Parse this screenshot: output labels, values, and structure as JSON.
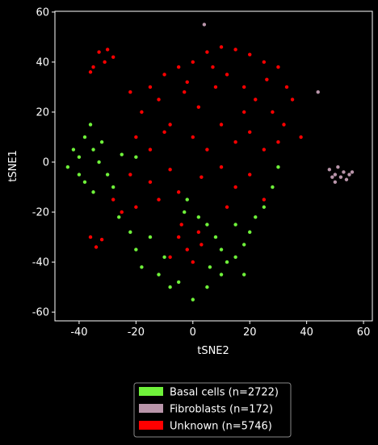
{
  "chart_data": {
    "type": "scatter",
    "x_label": "tSNE2",
    "y_label": "tSNE1",
    "xlim": [
      -48.5,
      63.1
    ],
    "ylim": [
      -63.5,
      60.3
    ],
    "xticks": [
      -40,
      -20,
      0,
      20,
      40,
      60
    ],
    "yticks": [
      -60,
      -40,
      -20,
      0,
      20,
      40,
      60
    ],
    "legend": "bottom",
    "series": [
      {
        "name": "Basal cells (n=2722)",
        "color": "#6ff23a",
        "x": [
          -44,
          -42,
          -40,
          -38,
          -36,
          -35,
          -33,
          -30,
          -28,
          -38,
          -40,
          -32,
          -25,
          -20,
          -35,
          -22,
          -20,
          -18,
          -15,
          -12,
          -8,
          -5,
          -10,
          -3,
          2,
          5,
          8,
          10,
          12,
          15,
          18,
          20,
          22,
          25,
          15,
          10,
          5,
          0,
          6,
          18,
          -2,
          28,
          30,
          -26
        ],
        "y": [
          -2,
          5,
          -5,
          10,
          15,
          5,
          0,
          -5,
          -10,
          -8,
          2,
          8,
          3,
          2,
          -12,
          -28,
          -35,
          -42,
          -30,
          -45,
          -50,
          -48,
          -38,
          -20,
          -22,
          -25,
          -30,
          -35,
          -40,
          -38,
          -33,
          -28,
          -22,
          -18,
          -25,
          -45,
          -50,
          -55,
          -42,
          -45,
          -15,
          -10,
          -2,
          -22
        ]
      },
      {
        "name": "Fibroblasts (n=172)",
        "color": "#b995aa",
        "x": [
          48,
          50,
          51,
          52,
          53,
          54,
          55,
          49,
          56,
          50,
          4,
          44
        ],
        "y": [
          -3,
          -5,
          -2,
          -6,
          -4,
          -7,
          -5,
          -6,
          -4,
          -8,
          55,
          28
        ]
      },
      {
        "name": "Unknown (n=5746)",
        "color": "#ff0000",
        "x": [
          -33,
          -30,
          -28,
          -35,
          -31,
          -36,
          -15,
          -10,
          -5,
          0,
          5,
          10,
          15,
          20,
          25,
          30,
          -18,
          -12,
          -8,
          -3,
          2,
          8,
          12,
          18,
          22,
          28,
          32,
          35,
          38,
          -20,
          -15,
          -10,
          0,
          5,
          10,
          15,
          20,
          25,
          30,
          -22,
          -15,
          -8,
          -5,
          3,
          10,
          15,
          20,
          -25,
          -28,
          -20,
          -36,
          -34,
          -32,
          -5,
          -2,
          0,
          3,
          -8,
          2,
          -4,
          12,
          25,
          33,
          26,
          -2,
          7,
          -22,
          18,
          -12
        ],
        "y": [
          44,
          45,
          42,
          38,
          40,
          36,
          30,
          35,
          38,
          40,
          44,
          46,
          45,
          43,
          40,
          38,
          20,
          25,
          15,
          28,
          22,
          30,
          35,
          30,
          25,
          20,
          15,
          25,
          10,
          10,
          5,
          12,
          10,
          5,
          15,
          8,
          12,
          5,
          8,
          -5,
          -8,
          -3,
          -12,
          -6,
          -2,
          -10,
          -5,
          -20,
          -15,
          -18,
          -30,
          -34,
          -31,
          -30,
          -35,
          -40,
          -33,
          -38,
          -28,
          -25,
          -18,
          -15,
          30,
          33,
          32,
          38,
          28,
          20,
          -15
        ]
      }
    ]
  }
}
